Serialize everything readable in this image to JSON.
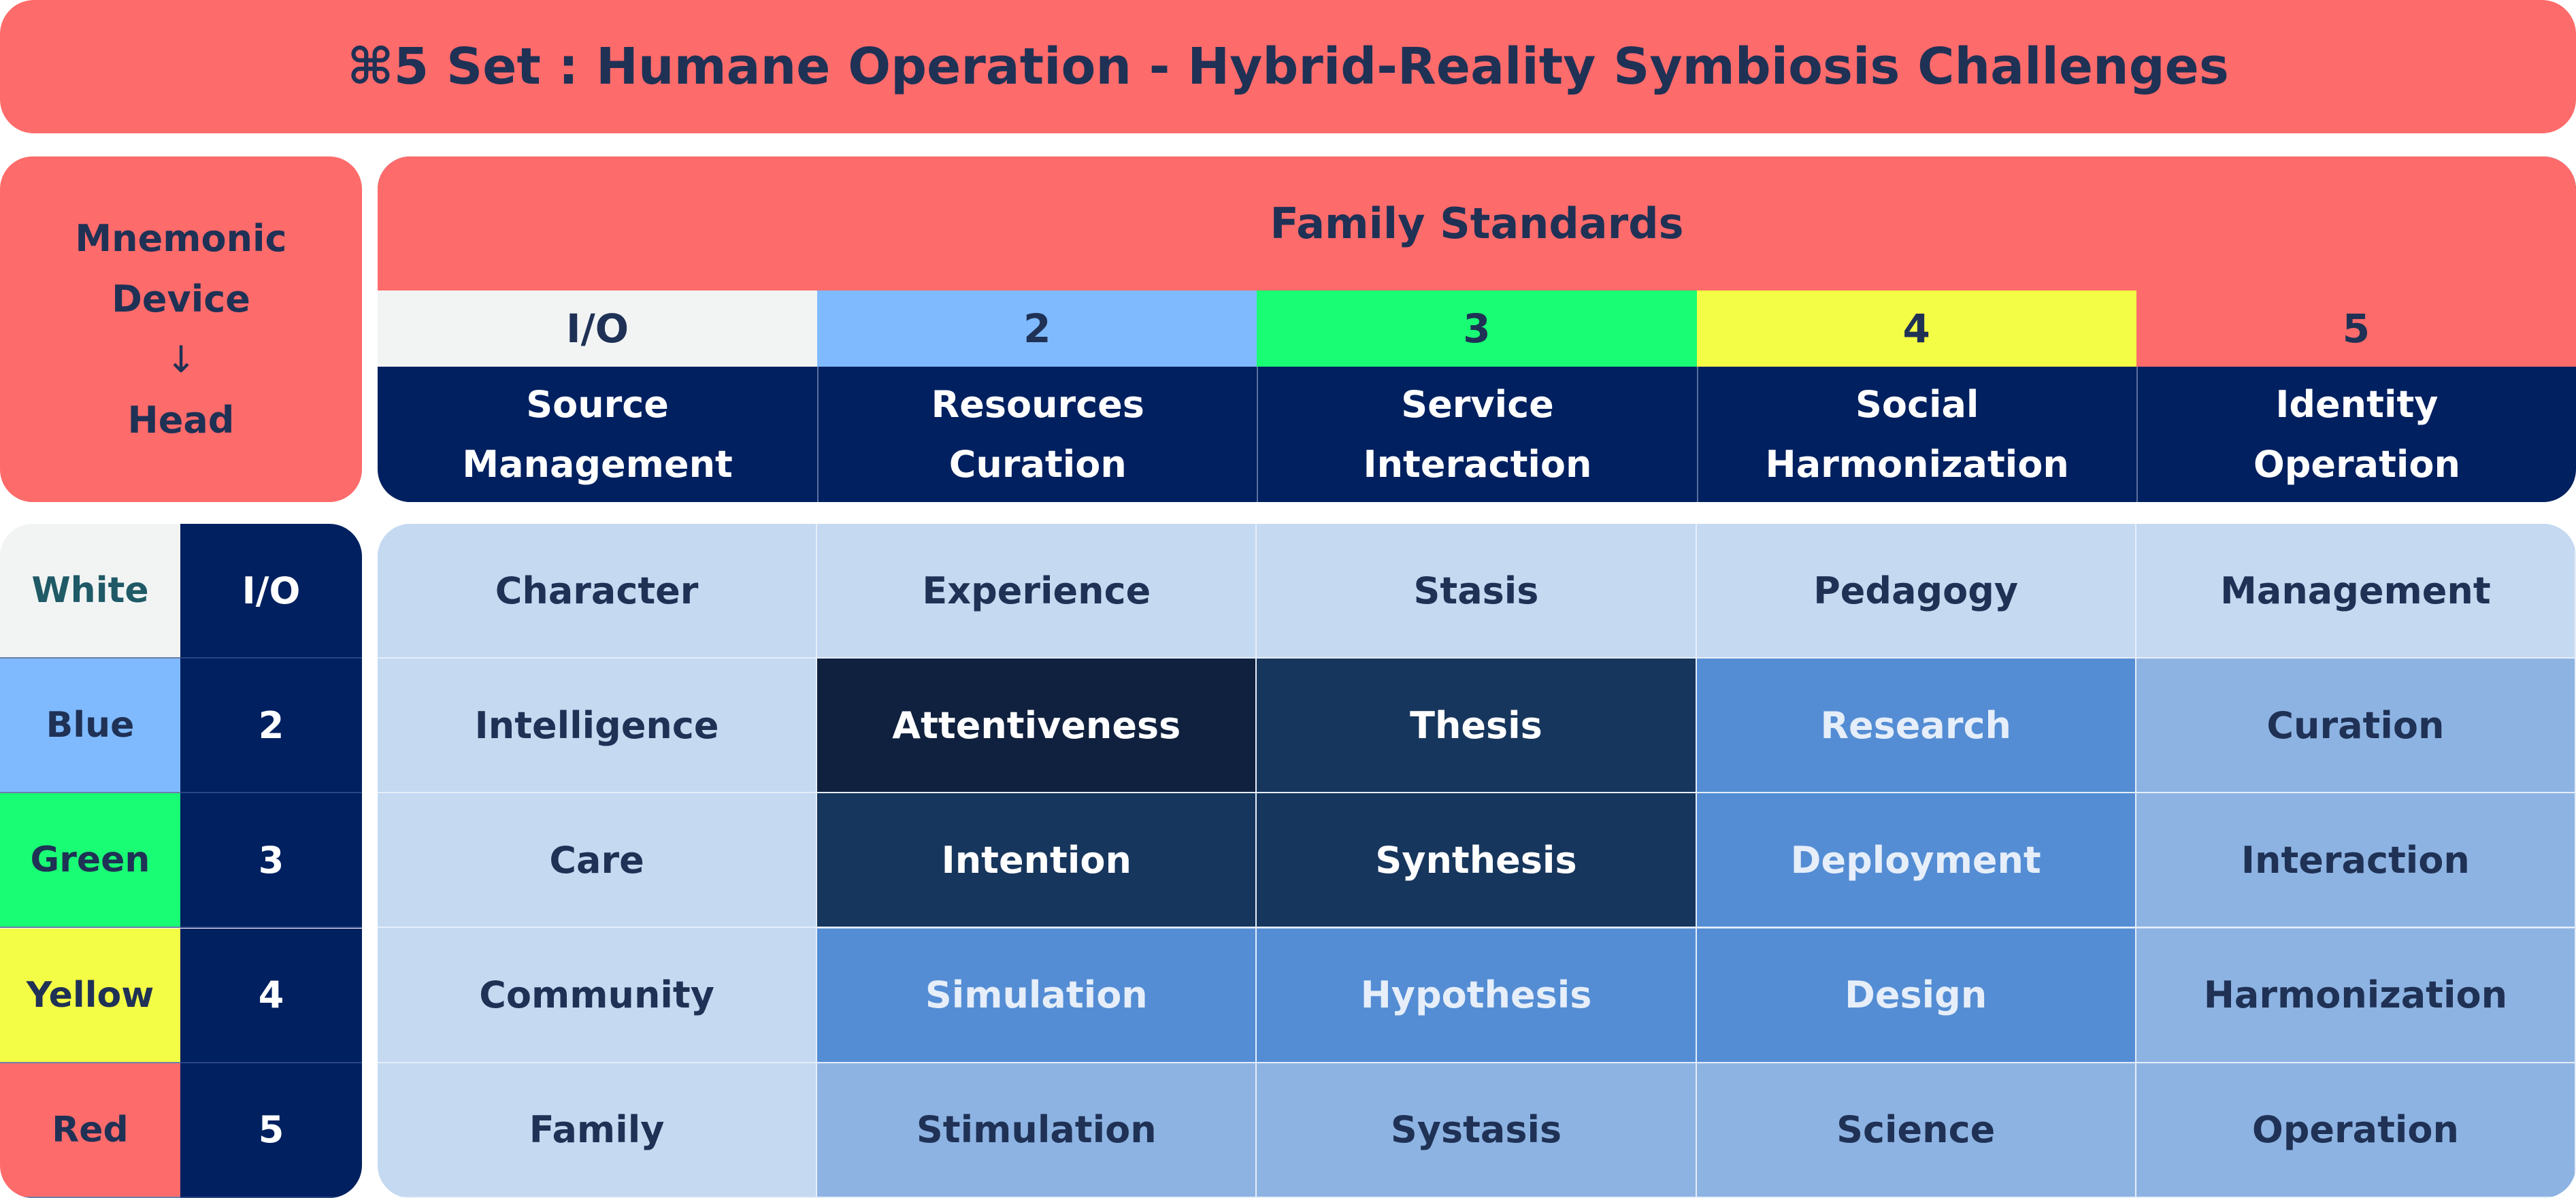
{
  "title": "⌘5 Set : Humane Operation -  Hybrid-Reality Symbiosis Challenges",
  "mnemonic": {
    "line1": "Mnemonic",
    "line2": "Device",
    "arrow": "↓",
    "line3": "Head"
  },
  "family_standards": {
    "title": "Family Standards",
    "columns": [
      {
        "num": "I/O",
        "color": "#f2f4f4",
        "line1": "Source",
        "line2": "Management"
      },
      {
        "num": "2",
        "color": "#7fbaff",
        "line1": "Resources",
        "line2": "Curation"
      },
      {
        "num": "3",
        "color": "#19fd74",
        "line1": "Service",
        "line2": "Interaction"
      },
      {
        "num": "4",
        "color": "#f4fd45",
        "line1": "Social",
        "line2": "Harmonization"
      },
      {
        "num": "5",
        "color": "#fe6b6b",
        "line1": "Identity",
        "line2": "Operation"
      }
    ]
  },
  "rows": [
    {
      "color_name": "White",
      "color": "#f2f4f4",
      "text_color": "#1f5a66",
      "num": "I/O"
    },
    {
      "color_name": "Blue",
      "color": "#7fbaff",
      "text_color": "#1f3155",
      "num": "2"
    },
    {
      "color_name": "Green",
      "color": "#19fd74",
      "text_color": "#1f3155",
      "num": "3"
    },
    {
      "color_name": "Yellow",
      "color": "#f4fd45",
      "text_color": "#1f3155",
      "num": "4"
    },
    {
      "color_name": "Red",
      "color": "#fe6b6b",
      "text_color": "#1f3155",
      "num": "5"
    }
  ],
  "grid": [
    [
      {
        "text": "Character",
        "bg": "#c5d9f1",
        "fg": "#1f3155"
      },
      {
        "text": "Experience",
        "bg": "#c5d9f1",
        "fg": "#1f3155"
      },
      {
        "text": "Stasis",
        "bg": "#c5d9f1",
        "fg": "#1f3155"
      },
      {
        "text": "Pedagogy",
        "bg": "#c5d9f1",
        "fg": "#1f3155"
      },
      {
        "text": "Management",
        "bg": "#c5d9f1",
        "fg": "#1f3155"
      }
    ],
    [
      {
        "text": "Intelligence",
        "bg": "#c5d9f1",
        "fg": "#1f3155"
      },
      {
        "text": "Attentiveness",
        "bg": "#10213f",
        "fg": "#ffffff"
      },
      {
        "text": "Thesis",
        "bg": "#17365d",
        "fg": "#ffffff"
      },
      {
        "text": "Research",
        "bg": "#548dd4",
        "fg": "#e6eef9"
      },
      {
        "text": "Curation",
        "bg": "#8db3e2",
        "fg": "#1f3155"
      }
    ],
    [
      {
        "text": "Care",
        "bg": "#c5d9f1",
        "fg": "#1f3155"
      },
      {
        "text": "Intention",
        "bg": "#17365d",
        "fg": "#ffffff"
      },
      {
        "text": "Synthesis",
        "bg": "#17365d",
        "fg": "#ffffff"
      },
      {
        "text": "Deployment",
        "bg": "#548dd4",
        "fg": "#e6eef9"
      },
      {
        "text": "Interaction",
        "bg": "#8db3e2",
        "fg": "#1f3155"
      }
    ],
    [
      {
        "text": "Community",
        "bg": "#c5d9f1",
        "fg": "#1f3155"
      },
      {
        "text": "Simulation",
        "bg": "#548dd4",
        "fg": "#e6eef9"
      },
      {
        "text": "Hypothesis",
        "bg": "#548dd4",
        "fg": "#e6eef9"
      },
      {
        "text": "Design",
        "bg": "#548dd4",
        "fg": "#e6eef9"
      },
      {
        "text": "Harmonization",
        "bg": "#8db3e2",
        "fg": "#1f3155"
      }
    ],
    [
      {
        "text": "Family",
        "bg": "#c5d9f1",
        "fg": "#1f3155"
      },
      {
        "text": "Stimulation",
        "bg": "#8db3e2",
        "fg": "#1f3155"
      },
      {
        "text": "Systasis",
        "bg": "#8db3e2",
        "fg": "#1f3155"
      },
      {
        "text": "Science",
        "bg": "#8db3e2",
        "fg": "#1f3155"
      },
      {
        "text": "Operation",
        "bg": "#8db3e2",
        "fg": "#1f3155"
      }
    ]
  ]
}
